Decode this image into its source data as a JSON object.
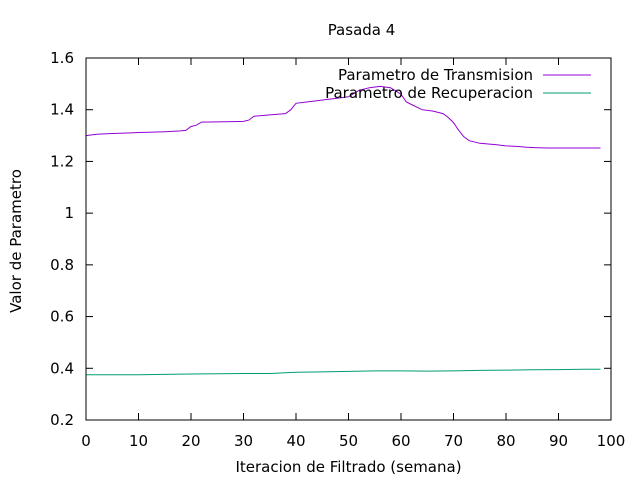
{
  "chart_data": {
    "type": "line",
    "title": "Pasada 4",
    "xlabel": "Iteracion de Filtrado (semana)",
    "ylabel": "Valor de Parametro",
    "xlim": [
      0,
      100
    ],
    "ylim": [
      0.2,
      1.6
    ],
    "xticks": [
      0,
      10,
      20,
      30,
      40,
      50,
      60,
      70,
      80,
      90,
      100
    ],
    "yticks": [
      0.2,
      0.4,
      0.6,
      0.8,
      1,
      1.2,
      1.4,
      1.6
    ],
    "grid": false,
    "legend_position": "top-right",
    "series": [
      {
        "name": "Parametro de Transmision",
        "color": "#9400d3",
        "x": [
          0,
          2,
          5,
          8,
          10,
          12,
          15,
          18,
          19,
          20,
          21,
          22,
          25,
          28,
          30,
          31,
          32,
          35,
          38,
          39,
          40,
          42,
          44,
          46,
          48,
          50,
          52,
          54,
          56,
          58,
          60,
          61,
          62,
          64,
          66,
          68,
          69,
          70,
          71,
          72,
          73,
          75,
          78,
          80,
          82,
          84,
          86,
          88,
          90,
          92,
          94,
          96,
          98
        ],
        "y": [
          1.3,
          1.305,
          1.308,
          1.31,
          1.312,
          1.313,
          1.315,
          1.318,
          1.32,
          1.335,
          1.34,
          1.352,
          1.353,
          1.354,
          1.355,
          1.36,
          1.375,
          1.38,
          1.385,
          1.4,
          1.425,
          1.43,
          1.435,
          1.44,
          1.445,
          1.45,
          1.475,
          1.485,
          1.49,
          1.485,
          1.46,
          1.43,
          1.42,
          1.4,
          1.395,
          1.385,
          1.37,
          1.35,
          1.32,
          1.295,
          1.28,
          1.27,
          1.265,
          1.26,
          1.258,
          1.255,
          1.253,
          1.252,
          1.252,
          1.252,
          1.252,
          1.252,
          1.252
        ]
      },
      {
        "name": "Parametro de Recuperacion",
        "color": "#009e73",
        "x": [
          0,
          10,
          20,
          30,
          35,
          40,
          45,
          50,
          55,
          60,
          65,
          70,
          75,
          80,
          85,
          90,
          95,
          98
        ],
        "y": [
          0.375,
          0.375,
          0.378,
          0.38,
          0.38,
          0.385,
          0.386,
          0.388,
          0.39,
          0.39,
          0.389,
          0.39,
          0.392,
          0.393,
          0.394,
          0.395,
          0.396,
          0.396
        ]
      }
    ]
  }
}
